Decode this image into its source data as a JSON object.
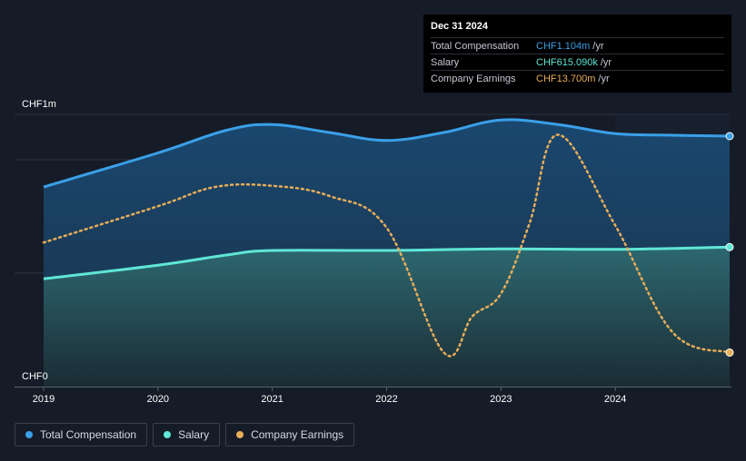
{
  "chart_data": {
    "type": "area",
    "title": "",
    "xlabel": "",
    "ylabel": "",
    "y_axis_labels": {
      "top": "CHF1m",
      "bottom": "CHF0"
    },
    "ylim": [
      0,
      1.2
    ],
    "xlim": [
      2019.0,
      2025.0
    ],
    "x_ticks": [
      2019,
      2020,
      2021,
      2022,
      2023,
      2024
    ],
    "x_tick_labels": [
      "2019",
      "2020",
      "2021",
      "2022",
      "2023",
      "2024"
    ],
    "forecast_start": 2024.0,
    "series": [
      {
        "name": "Total Compensation",
        "color": "#3aa0e8",
        "unit": "CHF m",
        "x": [
          2019.0,
          2020.0,
          2020.6,
          2021.0,
          2021.5,
          2022.0,
          2022.5,
          2023.0,
          2023.5,
          2024.0,
          2024.5,
          2025.0
        ],
        "values": [
          0.88,
          1.03,
          1.13,
          1.155,
          1.12,
          1.085,
          1.12,
          1.175,
          1.155,
          1.115,
          1.108,
          1.104
        ]
      },
      {
        "name": "Salary",
        "color": "#5fe6d6",
        "unit": "CHF m",
        "x": [
          2019.0,
          2020.0,
          2020.6,
          2021.0,
          2022.0,
          2023.0,
          2024.0,
          2025.0
        ],
        "values": [
          0.475,
          0.535,
          0.58,
          0.6,
          0.6,
          0.607,
          0.605,
          0.615
        ]
      },
      {
        "name": "Company Earnings",
        "color": "#e8ad58",
        "dashed": true,
        "x": [
          2019.0,
          2020.0,
          2020.5,
          2021.0,
          2021.5,
          2022.0,
          2022.5,
          2022.75,
          2023.0,
          2023.25,
          2023.5,
          2024.0,
          2024.5,
          2025.0
        ],
        "values": [
          0.635,
          0.795,
          0.88,
          0.885,
          0.84,
          0.7,
          0.15,
          0.31,
          0.41,
          0.72,
          1.11,
          0.71,
          0.24,
          0.15
        ]
      }
    ]
  },
  "tooltip": {
    "date": "Dec 31 2024",
    "rows": [
      {
        "label": "Total Compensation",
        "value": "CHF1.104m",
        "unit": "/yr",
        "color": "#3aa0e8"
      },
      {
        "label": "Salary",
        "value": "CHF615.090k",
        "unit": "/yr",
        "color": "#5fe6d6"
      },
      {
        "label": "Company Earnings",
        "value": "CHF13.700m",
        "unit": "/yr",
        "color": "#e8ad58"
      }
    ]
  },
  "legend": [
    {
      "label": "Total Compensation",
      "color": "#3aa0e8"
    },
    {
      "label": "Salary",
      "color": "#5fe6d6"
    },
    {
      "label": "Company Earnings",
      "color": "#e8ad58"
    }
  ]
}
